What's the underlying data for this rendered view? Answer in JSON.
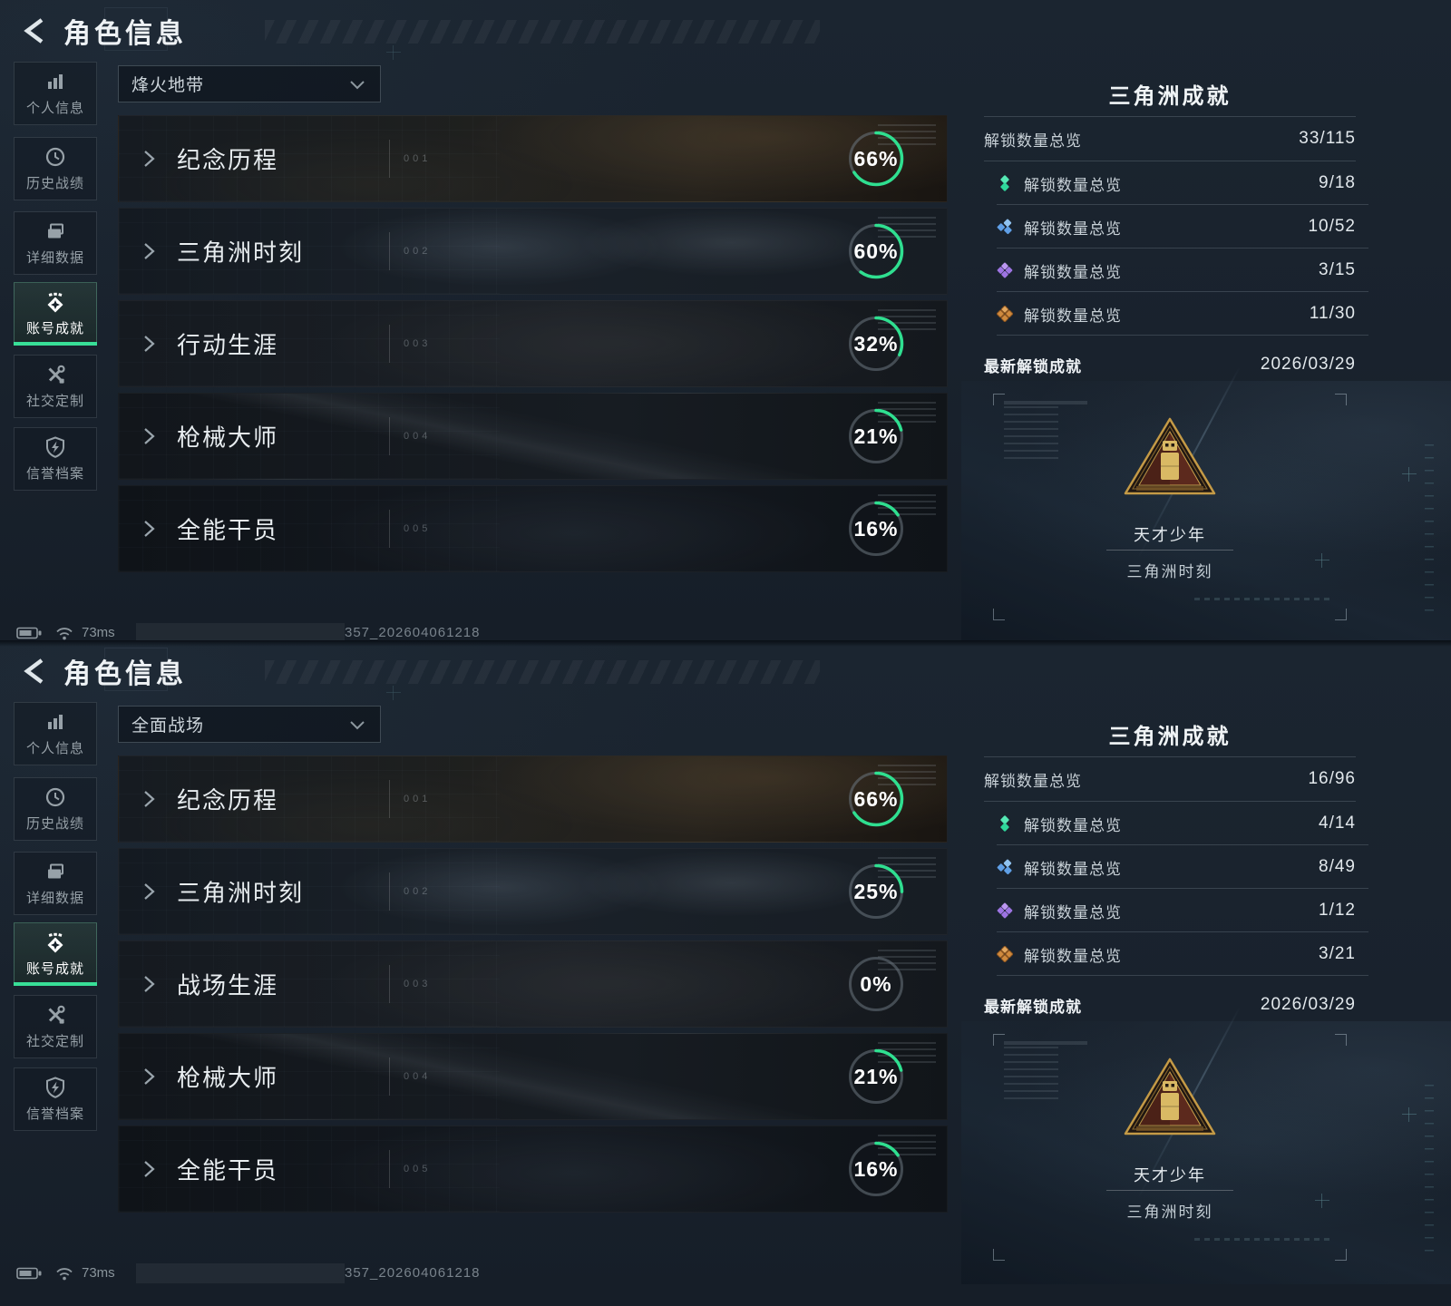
{
  "colors": {
    "accent_green": "#38df97",
    "ring_green": "#2fdf90",
    "ring_track": "#6b7680"
  },
  "screens": [
    {
      "header": {
        "title": "角色信息",
        "back_icon": "back-arrow-icon"
      },
      "sidebar": {
        "items": [
          {
            "label": "个人信息",
            "icon": "bar-chart-icon",
            "selected": false
          },
          {
            "label": "历史战绩",
            "icon": "history-clock-icon",
            "selected": false
          },
          {
            "label": "详细数据",
            "icon": "documents-icon",
            "selected": false
          },
          {
            "label": "账号成就",
            "icon": "achievement-badge-icon",
            "selected": true
          },
          {
            "label": "社交定制",
            "icon": "tools-icon",
            "selected": false
          },
          {
            "label": "信誉档案",
            "icon": "shield-bolt-icon",
            "selected": false
          }
        ]
      },
      "mode_dropdown": {
        "value": "烽火地带",
        "icon": "chevron-down-icon"
      },
      "categories": [
        {
          "index": "001",
          "title": "纪念历程",
          "percent": 66,
          "percent_label": "66%"
        },
        {
          "index": "002",
          "title": "三角洲时刻",
          "percent": 60,
          "percent_label": "60%"
        },
        {
          "index": "003",
          "title": "行动生涯",
          "percent": 32,
          "percent_label": "32%"
        },
        {
          "index": "004",
          "title": "枪械大师",
          "percent": 21,
          "percent_label": "21%"
        },
        {
          "index": "005",
          "title": "全能干员",
          "percent": 16,
          "percent_label": "16%"
        }
      ],
      "achievement_panel": {
        "title": "三角洲成就",
        "total": {
          "label": "解锁数量总览",
          "value": "33/115"
        },
        "tiers": [
          {
            "label": "解锁数量总览",
            "value": "9/18",
            "color": "#2fd89b",
            "color_light": "#55e8b4",
            "icon": "tier-green-diamonds-icon"
          },
          {
            "label": "解锁数量总览",
            "value": "10/52",
            "color": "#5f9fe6",
            "color_light": "#8fc2f0",
            "icon": "tier-blue-diamonds-icon"
          },
          {
            "label": "解锁数量总览",
            "value": "3/15",
            "color": "#9d74e2",
            "color_light": "#bb96f0",
            "icon": "tier-purple-diamonds-icon"
          },
          {
            "label": "解锁数量总览",
            "value": "11/30",
            "color": "#d08a3e",
            "color_light": "#e2a75f",
            "icon": "tier-orange-diamonds-icon"
          }
        ],
        "latest": {
          "label": "最新解锁成就",
          "value": "2026/03/29"
        },
        "badge": {
          "name": "天才少年",
          "category": "三角洲时刻",
          "icon": "triangle-medal-icon"
        }
      },
      "status_bar": {
        "battery_icon": "battery-icon",
        "wifi_icon": "wifi-icon",
        "ping": "73ms",
        "session_id": "357_202604061218"
      }
    },
    {
      "header": {
        "title": "角色信息",
        "back_icon": "back-arrow-icon"
      },
      "sidebar": {
        "items": [
          {
            "label": "个人信息",
            "icon": "bar-chart-icon",
            "selected": false
          },
          {
            "label": "历史战绩",
            "icon": "history-clock-icon",
            "selected": false
          },
          {
            "label": "详细数据",
            "icon": "documents-icon",
            "selected": false
          },
          {
            "label": "账号成就",
            "icon": "achievement-badge-icon",
            "selected": true
          },
          {
            "label": "社交定制",
            "icon": "tools-icon",
            "selected": false
          },
          {
            "label": "信誉档案",
            "icon": "shield-bolt-icon",
            "selected": false
          }
        ]
      },
      "mode_dropdown": {
        "value": "全面战场",
        "icon": "chevron-down-icon"
      },
      "categories": [
        {
          "index": "001",
          "title": "纪念历程",
          "percent": 66,
          "percent_label": "66%"
        },
        {
          "index": "002",
          "title": "三角洲时刻",
          "percent": 25,
          "percent_label": "25%"
        },
        {
          "index": "003",
          "title": "战场生涯",
          "percent": 0,
          "percent_label": "0%"
        },
        {
          "index": "004",
          "title": "枪械大师",
          "percent": 21,
          "percent_label": "21%"
        },
        {
          "index": "005",
          "title": "全能干员",
          "percent": 16,
          "percent_label": "16%"
        }
      ],
      "achievement_panel": {
        "title": "三角洲成就",
        "total": {
          "label": "解锁数量总览",
          "value": "16/96"
        },
        "tiers": [
          {
            "label": "解锁数量总览",
            "value": "4/14",
            "color": "#2fd89b",
            "color_light": "#55e8b4",
            "icon": "tier-green-diamonds-icon"
          },
          {
            "label": "解锁数量总览",
            "value": "8/49",
            "color": "#5f9fe6",
            "color_light": "#8fc2f0",
            "icon": "tier-blue-diamonds-icon"
          },
          {
            "label": "解锁数量总览",
            "value": "1/12",
            "color": "#9d74e2",
            "color_light": "#bb96f0",
            "icon": "tier-purple-diamonds-icon"
          },
          {
            "label": "解锁数量总览",
            "value": "3/21",
            "color": "#d08a3e",
            "color_light": "#e2a75f",
            "icon": "tier-orange-diamonds-icon"
          }
        ],
        "latest": {
          "label": "最新解锁成就",
          "value": "2026/03/29"
        },
        "badge": {
          "name": "天才少年",
          "category": "三角洲时刻",
          "icon": "triangle-medal-icon"
        }
      },
      "status_bar": {
        "battery_icon": "battery-icon",
        "wifi_icon": "wifi-icon",
        "ping": "73ms",
        "session_id": "357_202604061218"
      }
    }
  ]
}
